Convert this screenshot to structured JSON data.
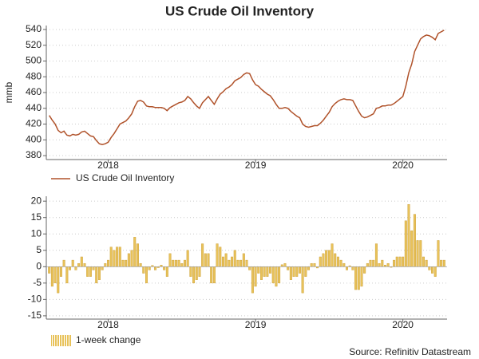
{
  "title": "US Crude Oil Inventory",
  "source": "Source: Refinitiv Datastream",
  "chart_data": [
    {
      "type": "line",
      "y_label": "mmb",
      "x": [
        2017.6,
        2017.62,
        2017.64,
        2017.66,
        2017.68,
        2017.7,
        2017.72,
        2017.74,
        2017.76,
        2017.78,
        2017.8,
        2017.82,
        2017.84,
        2017.86,
        2017.88,
        2017.9,
        2017.92,
        2017.94,
        2017.96,
        2017.98,
        2018.0,
        2018.02,
        2018.04,
        2018.06,
        2018.08,
        2018.1,
        2018.12,
        2018.14,
        2018.16,
        2018.18,
        2018.2,
        2018.22,
        2018.24,
        2018.26,
        2018.28,
        2018.3,
        2018.32,
        2018.34,
        2018.36,
        2018.38,
        2018.4,
        2018.42,
        2018.44,
        2018.46,
        2018.48,
        2018.5,
        2018.52,
        2018.54,
        2018.56,
        2018.58,
        2018.6,
        2018.62,
        2018.64,
        2018.66,
        2018.68,
        2018.7,
        2018.72,
        2018.74,
        2018.76,
        2018.78,
        2018.8,
        2018.82,
        2018.84,
        2018.86,
        2018.88,
        2018.9,
        2018.92,
        2018.94,
        2018.96,
        2018.98,
        2019.0,
        2019.02,
        2019.04,
        2019.06,
        2019.08,
        2019.1,
        2019.12,
        2019.14,
        2019.16,
        2019.18,
        2019.2,
        2019.22,
        2019.24,
        2019.26,
        2019.28,
        2019.3,
        2019.32,
        2019.34,
        2019.36,
        2019.38,
        2019.4,
        2019.42,
        2019.44,
        2019.46,
        2019.48,
        2019.5,
        2019.52,
        2019.54,
        2019.56,
        2019.58,
        2019.6,
        2019.62,
        2019.64,
        2019.66,
        2019.68,
        2019.7,
        2019.72,
        2019.74,
        2019.76,
        2019.78,
        2019.8,
        2019.82,
        2019.84,
        2019.86,
        2019.88,
        2019.9,
        2019.92,
        2019.94,
        2019.96,
        2019.98,
        2020.0,
        2020.02,
        2020.04,
        2020.06,
        2020.08,
        2020.1,
        2020.12,
        2020.14,
        2020.16,
        2020.18,
        2020.2,
        2020.22,
        2020.24,
        2020.26,
        2020.28
      ],
      "series": [
        {
          "name": "US Crude Oil Inventory",
          "color": "#b0522a",
          "values": [
            431,
            425,
            420,
            412,
            409,
            411,
            406,
            405,
            407,
            406,
            407,
            410,
            411,
            408,
            405,
            404,
            399,
            395,
            394,
            395,
            397,
            403,
            408,
            414,
            420,
            422,
            424,
            428,
            433,
            442,
            449,
            450,
            448,
            443,
            442,
            442,
            441,
            441,
            441,
            440,
            437,
            441,
            443,
            445,
            447,
            448,
            450,
            455,
            452,
            447,
            443,
            440,
            447,
            451,
            455,
            450,
            445,
            452,
            458,
            461,
            465,
            467,
            470,
            475,
            477,
            479,
            483,
            485,
            484,
            476,
            470,
            468,
            464,
            461,
            458,
            456,
            451,
            445,
            440,
            440,
            441,
            440,
            436,
            433,
            430,
            428,
            420,
            417,
            416,
            417,
            418,
            418,
            421,
            425,
            430,
            435,
            442,
            446,
            449,
            451,
            452,
            451,
            451,
            450,
            443,
            436,
            430,
            428,
            429,
            431,
            433,
            440,
            441,
            443,
            443,
            444,
            444,
            446,
            449,
            452,
            455,
            468,
            485,
            496,
            512,
            520,
            528,
            531,
            533,
            532,
            530,
            527,
            535,
            537,
            539
          ]
        }
      ],
      "xlim": [
        2017.58,
        2020.3
      ],
      "xticks": [
        2018,
        2019,
        2020
      ],
      "ylim": [
        375,
        545
      ],
      "yticks": [
        380,
        400,
        420,
        440,
        460,
        480,
        500,
        520,
        540
      ],
      "grid": true
    },
    {
      "type": "bar",
      "x": [
        2017.6,
        2017.62,
        2017.64,
        2017.66,
        2017.68,
        2017.7,
        2017.72,
        2017.74,
        2017.76,
        2017.78,
        2017.8,
        2017.82,
        2017.84,
        2017.86,
        2017.88,
        2017.9,
        2017.92,
        2017.94,
        2017.96,
        2017.98,
        2018.0,
        2018.02,
        2018.04,
        2018.06,
        2018.08,
        2018.1,
        2018.12,
        2018.14,
        2018.16,
        2018.18,
        2018.2,
        2018.22,
        2018.24,
        2018.26,
        2018.28,
        2018.3,
        2018.32,
        2018.34,
        2018.36,
        2018.38,
        2018.4,
        2018.42,
        2018.44,
        2018.46,
        2018.48,
        2018.5,
        2018.52,
        2018.54,
        2018.56,
        2018.58,
        2018.6,
        2018.62,
        2018.64,
        2018.66,
        2018.68,
        2018.7,
        2018.72,
        2018.74,
        2018.76,
        2018.78,
        2018.8,
        2018.82,
        2018.84,
        2018.86,
        2018.88,
        2018.9,
        2018.92,
        2018.94,
        2018.96,
        2018.98,
        2019.0,
        2019.02,
        2019.04,
        2019.06,
        2019.08,
        2019.1,
        2019.12,
        2019.14,
        2019.16,
        2019.18,
        2019.2,
        2019.22,
        2019.24,
        2019.26,
        2019.28,
        2019.3,
        2019.32,
        2019.34,
        2019.36,
        2019.38,
        2019.4,
        2019.42,
        2019.44,
        2019.46,
        2019.48,
        2019.5,
        2019.52,
        2019.54,
        2019.56,
        2019.58,
        2019.6,
        2019.62,
        2019.64,
        2019.66,
        2019.68,
        2019.7,
        2019.72,
        2019.74,
        2019.76,
        2019.78,
        2019.8,
        2019.82,
        2019.84,
        2019.86,
        2019.88,
        2019.9,
        2019.92,
        2019.94,
        2019.96,
        2019.98,
        2020.0,
        2020.02,
        2020.04,
        2020.06,
        2020.08,
        2020.1,
        2020.12,
        2020.14,
        2020.16,
        2020.18,
        2020.2,
        2020.22,
        2020.24,
        2020.26,
        2020.28
      ],
      "series": [
        {
          "name": "1-week change",
          "color": "#e8c25a",
          "values": [
            -2,
            -6,
            -5,
            -8,
            -3,
            2,
            -5,
            -1,
            2,
            -1,
            1,
            3,
            1,
            -3,
            -3,
            -1,
            -5,
            -4,
            -1,
            1,
            2,
            6,
            5,
            6,
            6,
            2,
            2,
            4,
            5,
            9,
            7,
            1,
            -2,
            -5,
            -1,
            0.4,
            -1,
            -0.3,
            0.5,
            -1,
            -3,
            4,
            2,
            2,
            2,
            1,
            2,
            5,
            -3,
            -5,
            -4,
            -3,
            7,
            4,
            4,
            -5,
            -5,
            7,
            6,
            3,
            4,
            2,
            3,
            5,
            2,
            2,
            4,
            2,
            -1,
            -8,
            -6,
            -2,
            -4,
            -3,
            -3,
            -2,
            -5,
            -6,
            -5,
            0.6,
            1,
            -1,
            -4,
            -3,
            -3,
            -2,
            -8,
            -3,
            -1,
            1,
            1,
            -0.4,
            3,
            4,
            5,
            5,
            7,
            4,
            3,
            2,
            1,
            -1,
            0.3,
            -1,
            -7,
            -7,
            -6,
            -2,
            1,
            2,
            2,
            7,
            1,
            2,
            0.5,
            1,
            -0.2,
            2,
            3,
            3,
            3,
            14,
            19,
            11,
            16,
            8,
            8,
            3,
            2,
            -1,
            -2,
            -3,
            8,
            2,
            2
          ]
        }
      ],
      "xlim": [
        2017.58,
        2020.3
      ],
      "xticks": [
        2018,
        2019,
        2020
      ],
      "ylim": [
        -16,
        21.5
      ],
      "yticks": [
        20,
        15,
        10,
        5,
        0,
        -5,
        -10,
        -15
      ],
      "grid": true
    }
  ]
}
